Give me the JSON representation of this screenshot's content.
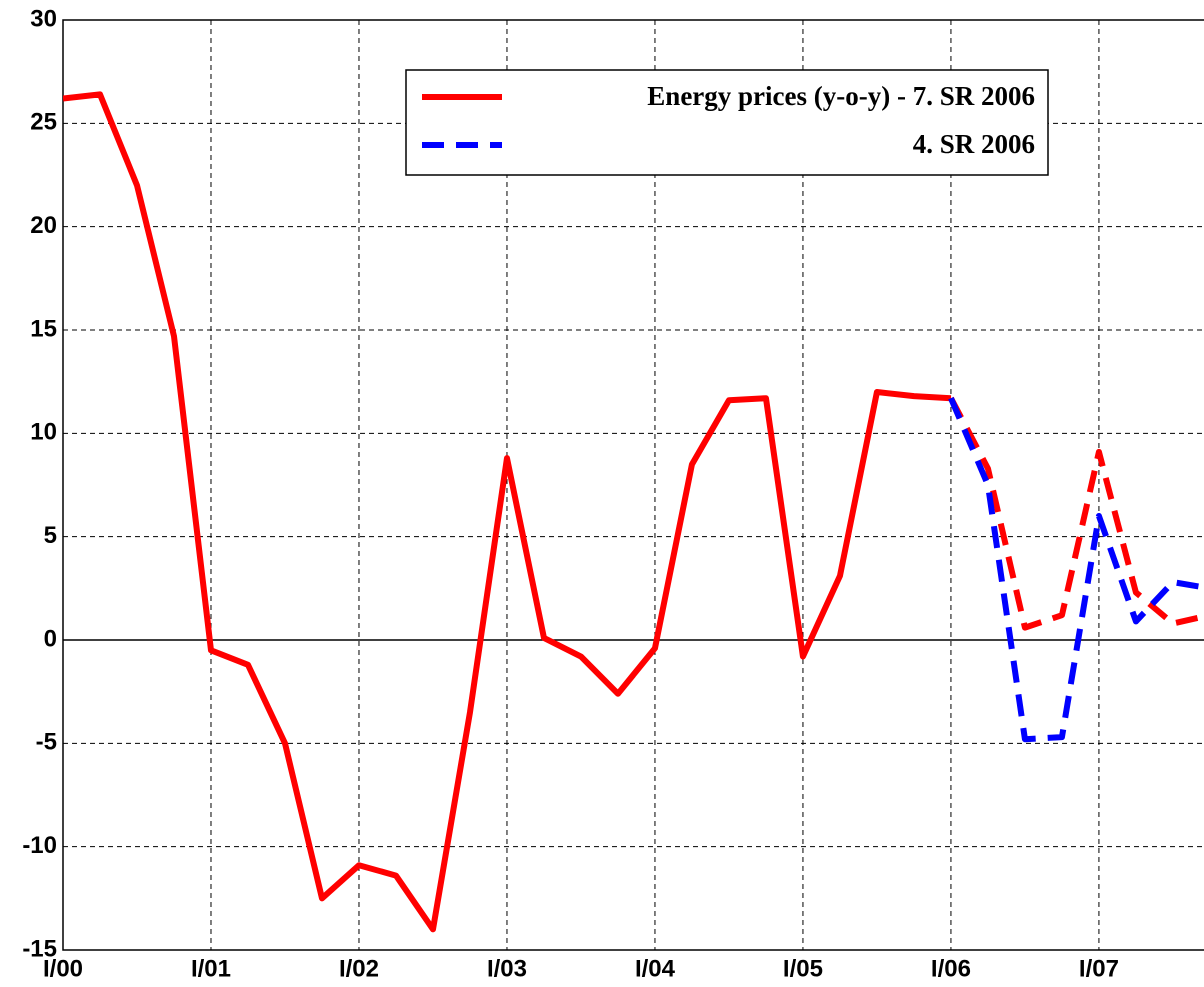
{
  "chart_data": {
    "type": "line",
    "x": [
      0,
      1,
      2,
      3,
      4,
      5,
      6,
      7,
      8,
      9,
      10,
      11,
      12,
      13,
      14,
      15,
      16,
      17,
      18,
      19,
      20,
      21,
      22,
      23,
      24,
      25,
      26,
      27,
      28,
      29,
      30,
      31
    ],
    "series": [
      {
        "name": "Energy prices (y-o-y) - 7. SR 2006",
        "color": "#ff0000",
        "dashed_from": 24,
        "values": [
          26.2,
          26.4,
          22,
          14.7,
          -0.5,
          -1.2,
          -5,
          -12.5,
          -10.9,
          -11.4,
          -14,
          -3.5,
          8.8,
          0.1,
          -0.8,
          -2.6,
          -0.4,
          8.5,
          11.6,
          11.7,
          -0.8,
          3.1,
          12,
          11.8,
          11.7,
          8.3,
          0.6,
          1.2,
          9.1,
          2.3,
          0.8,
          1.2
        ]
      },
      {
        "name": "4. SR 2006",
        "color": "#0000ff",
        "dashed_from": 0,
        "values": [
          null,
          null,
          null,
          null,
          null,
          null,
          null,
          null,
          null,
          null,
          null,
          null,
          null,
          null,
          null,
          null,
          null,
          null,
          null,
          null,
          null,
          null,
          null,
          null,
          11.7,
          7.5,
          -4.8,
          -4.7,
          6,
          0.9,
          2.8,
          2.5
        ]
      }
    ],
    "xlim": [
      0,
      30.84
    ],
    "xticks": [
      {
        "value": 0,
        "label": "I/00"
      },
      {
        "value": 4,
        "label": "I/01"
      },
      {
        "value": 8,
        "label": "I/02"
      },
      {
        "value": 12,
        "label": "I/03"
      },
      {
        "value": 16,
        "label": "I/04"
      },
      {
        "value": 20,
        "label": "I/05"
      },
      {
        "value": 24,
        "label": "I/06"
      },
      {
        "value": 28,
        "label": "I/07"
      }
    ],
    "ylim": [
      -15,
      30
    ],
    "yticks": [
      -15,
      -10,
      -5,
      0,
      5,
      10,
      15,
      20,
      25,
      30
    ],
    "grid": true
  }
}
